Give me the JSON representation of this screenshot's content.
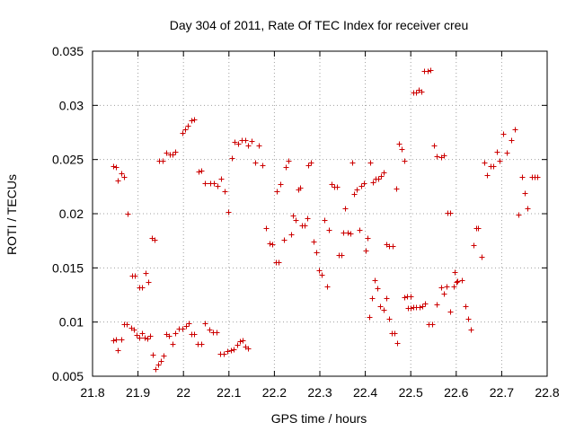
{
  "chart_data": {
    "type": "scatter",
    "title": "Day 304 of 2011, Rate Of TEC Index for receiver creu",
    "xlabel": "GPS time / hours",
    "ylabel": "ROTI / TECUs",
    "xlim": [
      21.8,
      22.8
    ],
    "ylim": [
      0.005,
      0.035
    ],
    "xticks": [
      21.8,
      21.9,
      22.0,
      22.1,
      22.2,
      22.3,
      22.4,
      22.5,
      22.6,
      22.7,
      22.8
    ],
    "xtick_labels": [
      "21.8",
      "21.9",
      "22",
      "22.1",
      "22.2",
      "22.3",
      "22.4",
      "22.5",
      "22.6",
      "22.7",
      "22.8"
    ],
    "yticks": [
      0.005,
      0.01,
      0.015,
      0.02,
      0.025,
      0.03,
      0.035
    ],
    "ytick_labels": [
      "0.005",
      "0.01",
      "0.015",
      "0.02",
      "0.025",
      "0.03",
      "0.035"
    ],
    "grid": true,
    "marker": "plus",
    "color": "#cc0000",
    "series": [
      {
        "name": "ROTI",
        "points": [
          [
            21.846,
            0.0244
          ],
          [
            21.851,
            0.0243
          ],
          [
            21.856,
            0.0231
          ],
          [
            21.864,
            0.0237
          ],
          [
            21.87,
            0.0234
          ],
          [
            21.878,
            0.02
          ],
          [
            21.886,
            0.0143
          ],
          [
            21.893,
            0.0143
          ],
          [
            21.902,
            0.0132
          ],
          [
            21.909,
            0.0132
          ],
          [
            21.916,
            0.0145
          ],
          [
            21.922,
            0.0137
          ],
          [
            21.93,
            0.0178
          ],
          [
            21.936,
            0.0176
          ],
          [
            21.946,
            0.0249
          ],
          [
            21.954,
            0.0249
          ],
          [
            21.962,
            0.0256
          ],
          [
            21.97,
            0.0255
          ],
          [
            21.976,
            0.0255
          ],
          [
            21.982,
            0.0257
          ],
          [
            21.998,
            0.0275
          ],
          [
            22.004,
            0.0278
          ],
          [
            22.01,
            0.0281
          ],
          [
            22.018,
            0.0286
          ],
          [
            22.024,
            0.0287
          ],
          [
            22.034,
            0.0239
          ],
          [
            22.04,
            0.024
          ],
          [
            22.048,
            0.0228
          ],
          [
            22.058,
            0.0228
          ],
          [
            22.066,
            0.0228
          ],
          [
            22.074,
            0.0226
          ],
          [
            22.082,
            0.0232
          ],
          [
            22.09,
            0.0221
          ],
          [
            22.098,
            0.0202
          ],
          [
            22.106,
            0.0251
          ],
          [
            22.112,
            0.0266
          ],
          [
            22.12,
            0.0265
          ],
          [
            22.128,
            0.0268
          ],
          [
            22.136,
            0.0268
          ],
          [
            22.142,
            0.0263
          ],
          [
            22.15,
            0.0267
          ],
          [
            22.158,
            0.0247
          ],
          [
            22.166,
            0.0263
          ],
          [
            22.174,
            0.0245
          ],
          [
            22.182,
            0.0187
          ],
          [
            22.19,
            0.0173
          ],
          [
            22.196,
            0.0172
          ],
          [
            22.204,
            0.0155
          ],
          [
            22.21,
            0.0155
          ],
          [
            22.206,
            0.0221
          ],
          [
            22.214,
            0.0227
          ],
          [
            22.22,
            0.0176
          ],
          [
            22.224,
            0.0243
          ],
          [
            22.23,
            0.0249
          ],
          [
            22.236,
            0.0181
          ],
          [
            22.24,
            0.0198
          ],
          [
            22.246,
            0.0194
          ],
          [
            22.252,
            0.0222
          ],
          [
            22.256,
            0.0224
          ],
          [
            22.26,
            0.0189
          ],
          [
            22.266,
            0.0189
          ],
          [
            22.272,
            0.0196
          ],
          [
            22.274,
            0.0245
          ],
          [
            22.28,
            0.0247
          ],
          [
            22.286,
            0.0174
          ],
          [
            22.292,
            0.0164
          ],
          [
            22.298,
            0.0148
          ],
          [
            22.304,
            0.0144
          ],
          [
            22.31,
            0.0194
          ],
          [
            22.316,
            0.0133
          ],
          [
            22.32,
            0.0185
          ],
          [
            22.326,
            0.0227
          ],
          [
            22.332,
            0.0225
          ],
          [
            22.338,
            0.0225
          ],
          [
            22.342,
            0.0162
          ],
          [
            22.348,
            0.0162
          ],
          [
            22.352,
            0.0183
          ],
          [
            22.356,
            0.0205
          ],
          [
            22.362,
            0.0183
          ],
          [
            22.368,
            0.0182
          ],
          [
            22.372,
            0.0247
          ],
          [
            22.376,
            0.0218
          ],
          [
            22.382,
            0.0222
          ],
          [
            22.386,
            0.0185
          ],
          [
            22.39,
            0.0226
          ],
          [
            22.396,
            0.0228
          ],
          [
            22.4,
            0.0166
          ],
          [
            22.404,
            0.0178
          ],
          [
            22.41,
            0.0247
          ],
          [
            22.416,
            0.0229
          ],
          [
            22.422,
            0.0232
          ],
          [
            22.428,
            0.0232
          ],
          [
            22.434,
            0.0235
          ],
          [
            22.44,
            0.0238
          ],
          [
            22.446,
            0.0172
          ],
          [
            22.452,
            0.017
          ],
          [
            22.46,
            0.017
          ],
          [
            22.468,
            0.0223
          ],
          [
            22.474,
            0.0265
          ],
          [
            22.48,
            0.026
          ],
          [
            22.486,
            0.0249
          ],
          [
            22.492,
            0.0124
          ],
          [
            22.5,
            0.0124
          ],
          [
            22.506,
            0.0312
          ],
          [
            22.512,
            0.0312
          ],
          [
            22.518,
            0.0314
          ],
          [
            22.524,
            0.0313
          ],
          [
            22.53,
            0.0332
          ],
          [
            22.538,
            0.0332
          ],
          [
            22.544,
            0.0333
          ],
          [
            22.55,
            0.0263
          ],
          [
            22.556,
            0.0253
          ],
          [
            22.566,
            0.0252
          ],
          [
            22.572,
            0.0254
          ],
          [
            22.58,
            0.0201
          ],
          [
            22.586,
            0.0201
          ],
          [
            22.596,
            0.0146
          ],
          [
            22.602,
            0.0138
          ],
          [
            22.612,
            0.0139
          ],
          [
            22.62,
            0.0115
          ],
          [
            22.626,
            0.0103
          ],
          [
            22.632,
            0.0093
          ],
          [
            22.638,
            0.0171
          ],
          [
            22.644,
            0.0187
          ],
          [
            22.648,
            0.0187
          ],
          [
            22.656,
            0.016
          ],
          [
            22.662,
            0.0247
          ],
          [
            22.668,
            0.0236
          ],
          [
            22.676,
            0.0244
          ],
          [
            22.682,
            0.0244
          ],
          [
            22.69,
            0.0257
          ],
          [
            22.696,
            0.0249
          ],
          [
            22.704,
            0.0274
          ],
          [
            22.712,
            0.0256
          ],
          [
            22.72,
            0.0268
          ],
          [
            22.728,
            0.0278
          ],
          [
            22.736,
            0.0199
          ],
          [
            22.744,
            0.0234
          ],
          [
            22.75,
            0.0219
          ],
          [
            22.756,
            0.0205
          ],
          [
            22.766,
            0.0234
          ],
          [
            22.772,
            0.0234
          ],
          [
            22.778,
            0.0234
          ],
          [
            21.846,
            0.0083
          ],
          [
            21.851,
            0.0084
          ],
          [
            21.856,
            0.0074
          ],
          [
            21.864,
            0.0084
          ],
          [
            21.87,
            0.0098
          ],
          [
            21.876,
            0.0098
          ],
          [
            21.884,
            0.0095
          ],
          [
            21.89,
            0.0093
          ],
          [
            21.896,
            0.0088
          ],
          [
            21.902,
            0.0086
          ],
          [
            21.908,
            0.009
          ],
          [
            21.914,
            0.0086
          ],
          [
            21.92,
            0.0085
          ],
          [
            21.926,
            0.0087
          ],
          [
            21.932,
            0.007
          ],
          [
            21.938,
            0.0057
          ],
          [
            21.944,
            0.0061
          ],
          [
            21.95,
            0.0064
          ],
          [
            21.956,
            0.0069
          ],
          [
            21.962,
            0.0089
          ],
          [
            21.968,
            0.0087
          ],
          [
            21.976,
            0.008
          ],
          [
            21.982,
            0.009
          ],
          [
            21.99,
            0.0094
          ],
          [
            21.998,
            0.0094
          ],
          [
            22.006,
            0.0096
          ],
          [
            22.012,
            0.0099
          ],
          [
            22.018,
            0.0089
          ],
          [
            22.024,
            0.0089
          ],
          [
            22.032,
            0.008
          ],
          [
            22.04,
            0.008
          ],
          [
            22.048,
            0.0099
          ],
          [
            22.056,
            0.0093
          ],
          [
            22.064,
            0.0091
          ],
          [
            22.072,
            0.0091
          ],
          [
            22.08,
            0.0071
          ],
          [
            22.088,
            0.0071
          ],
          [
            22.096,
            0.0073
          ],
          [
            22.104,
            0.0074
          ],
          [
            22.11,
            0.0075
          ],
          [
            22.118,
            0.0079
          ],
          [
            22.124,
            0.0082
          ],
          [
            22.13,
            0.0083
          ],
          [
            22.136,
            0.0077
          ],
          [
            22.142,
            0.0076
          ],
          [
            22.486,
            0.0123
          ],
          [
            22.494,
            0.0113
          ],
          [
            22.5,
            0.0113
          ],
          [
            22.506,
            0.0114
          ],
          [
            22.512,
            0.0114
          ],
          [
            22.52,
            0.0114
          ],
          [
            22.526,
            0.0115
          ],
          [
            22.532,
            0.0117
          ],
          [
            22.54,
            0.0098
          ],
          [
            22.548,
            0.0098
          ],
          [
            22.556,
            0.0116
          ],
          [
            22.566,
            0.0132
          ],
          [
            22.572,
            0.0126
          ],
          [
            22.578,
            0.0133
          ],
          [
            22.586,
            0.011
          ],
          [
            22.594,
            0.0133
          ],
          [
            22.6,
            0.0137
          ],
          [
            22.446,
            0.0122
          ],
          [
            22.44,
            0.0111
          ],
          [
            22.432,
            0.0115
          ],
          [
            22.426,
            0.0131
          ],
          [
            22.42,
            0.0139
          ],
          [
            22.414,
            0.0122
          ],
          [
            22.408,
            0.0105
          ],
          [
            22.452,
            0.0103
          ],
          [
            22.458,
            0.009
          ],
          [
            22.464,
            0.009
          ],
          [
            22.47,
            0.0081
          ]
        ]
      }
    ]
  }
}
